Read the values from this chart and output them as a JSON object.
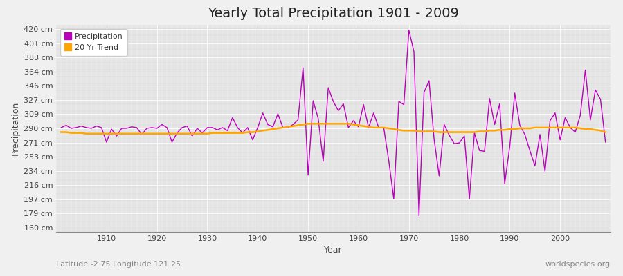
{
  "title": "Yearly Total Precipitation 1901 - 2009",
  "xlabel": "Year",
  "ylabel": "Precipitation",
  "subtitle": "Latitude -2.75 Longitude 121.25",
  "watermark": "worldspecies.org",
  "yticks": [
    160,
    179,
    197,
    216,
    234,
    253,
    271,
    290,
    309,
    327,
    346,
    364,
    383,
    401,
    420
  ],
  "ylim": [
    155,
    425
  ],
  "xlim": [
    1900,
    2010
  ],
  "precip_color": "#bb00bb",
  "trend_color": "#ffa500",
  "bg_color": "#f0f0f0",
  "plot_bg_color": "#dcdcdc",
  "grid_color": "#ffffff",
  "years": [
    1901,
    1902,
    1903,
    1904,
    1905,
    1906,
    1907,
    1908,
    1909,
    1910,
    1911,
    1912,
    1913,
    1914,
    1915,
    1916,
    1917,
    1918,
    1919,
    1920,
    1921,
    1922,
    1923,
    1924,
    1925,
    1926,
    1927,
    1928,
    1929,
    1930,
    1931,
    1932,
    1933,
    1934,
    1935,
    1936,
    1937,
    1938,
    1939,
    1940,
    1941,
    1942,
    1943,
    1944,
    1945,
    1946,
    1947,
    1948,
    1949,
    1950,
    1951,
    1952,
    1953,
    1954,
    1955,
    1956,
    1957,
    1958,
    1959,
    1960,
    1961,
    1962,
    1963,
    1964,
    1965,
    1966,
    1967,
    1968,
    1969,
    1970,
    1971,
    1972,
    1973,
    1974,
    1975,
    1976,
    1977,
    1978,
    1979,
    1980,
    1981,
    1982,
    1983,
    1984,
    1985,
    1986,
    1987,
    1988,
    1989,
    1990,
    1991,
    1992,
    1993,
    1994,
    1995,
    1996,
    1997,
    1998,
    1999,
    2000,
    2001,
    2002,
    2003,
    2004,
    2005,
    2006,
    2007,
    2008,
    2009
  ],
  "precip": [
    291,
    294,
    290,
    291,
    293,
    291,
    290,
    293,
    291,
    272,
    289,
    280,
    290,
    290,
    292,
    291,
    282,
    290,
    291,
    290,
    295,
    291,
    272,
    284,
    291,
    293,
    280,
    290,
    284,
    291,
    291,
    288,
    291,
    287,
    304,
    291,
    284,
    291,
    275,
    291,
    310,
    295,
    292,
    309,
    291,
    291,
    295,
    301,
    369,
    229,
    326,
    303,
    247,
    343,
    325,
    313,
    322,
    291,
    300,
    292,
    321,
    291,
    310,
    291,
    291,
    248,
    198,
    325,
    321,
    418,
    390,
    176,
    337,
    352,
    276,
    228,
    295,
    281,
    270,
    271,
    280,
    198,
    284,
    261,
    260,
    329,
    295,
    322,
    218,
    266,
    336,
    294,
    282,
    261,
    241,
    282,
    234,
    300,
    310,
    275,
    304,
    291,
    285,
    307,
    366,
    301,
    340,
    328,
    272
  ],
  "trend": [
    285,
    285,
    284,
    284,
    284,
    283,
    283,
    283,
    283,
    283,
    283,
    283,
    283,
    283,
    283,
    283,
    283,
    283,
    283,
    283,
    283,
    283,
    283,
    283,
    283,
    283,
    283,
    283,
    283,
    283,
    284,
    284,
    284,
    284,
    284,
    284,
    284,
    285,
    285,
    286,
    287,
    288,
    289,
    290,
    291,
    292,
    293,
    294,
    295,
    296,
    296,
    296,
    296,
    296,
    296,
    296,
    296,
    296,
    295,
    294,
    293,
    292,
    291,
    291,
    291,
    290,
    289,
    288,
    287,
    287,
    287,
    286,
    286,
    286,
    286,
    285,
    285,
    285,
    285,
    285,
    285,
    285,
    285,
    286,
    286,
    287,
    287,
    288,
    288,
    289,
    289,
    290,
    290,
    290,
    291,
    291,
    291,
    291,
    291,
    291,
    291,
    291,
    291,
    290,
    289,
    289,
    288,
    287,
    285
  ],
  "title_fontsize": 14,
  "axis_label_fontsize": 9,
  "tick_fontsize": 8,
  "legend_fontsize": 8,
  "subtitle_fontsize": 8,
  "watermark_fontsize": 8
}
